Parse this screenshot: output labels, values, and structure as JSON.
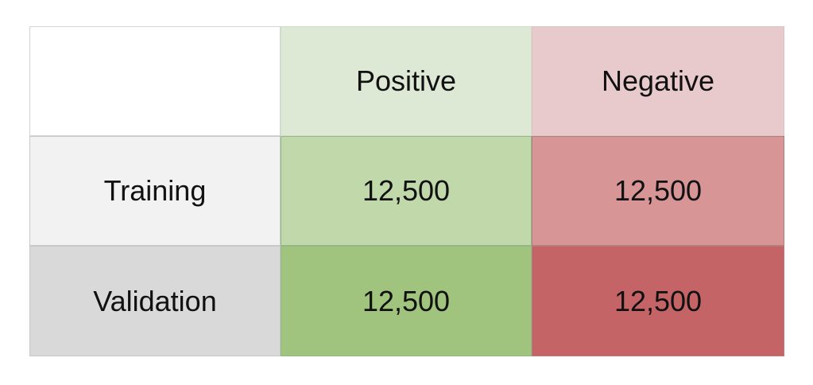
{
  "table": {
    "columns": [
      "",
      "Positive",
      "Negative"
    ],
    "rows": [
      {
        "label": "Training",
        "positive": "12,500",
        "negative": "12,500"
      },
      {
        "label": "Validation",
        "positive": "12,500",
        "negative": "12,500"
      }
    ]
  },
  "colors": {
    "header_positive": "#dde8d5",
    "header_negative": "#e9cacc",
    "training_label": "#f2f2f2",
    "validation_label": "#d9d9d9",
    "training_positive": "#c0d8aa",
    "training_negative": "#d79596",
    "validation_positive": "#a0c37d",
    "validation_negative": "#c56466"
  }
}
